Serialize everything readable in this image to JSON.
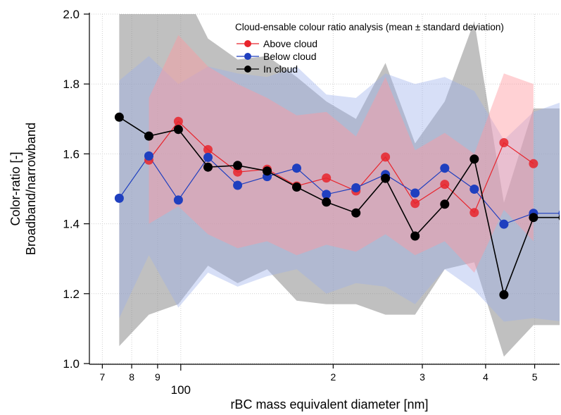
{
  "chart_data": {
    "type": "scatter",
    "title": "",
    "xlabel": "rBC mass equivalent diameter [nm]",
    "ylabel_line1": "Color-ratio [-]",
    "ylabel_line2": "Broadband/narrowband",
    "x_scale": "log",
    "xlim": [
      66,
      560
    ],
    "ylim": [
      1.0,
      2.0
    ],
    "grid": true,
    "legend_position": "top-right",
    "legend_title": "Cloud-ensable colour ratio analysis (mean ± standard deviation)",
    "x_ticks": [
      {
        "value": 70,
        "label": "7"
      },
      {
        "value": 80,
        "label": "8"
      },
      {
        "value": 90,
        "label": "9"
      },
      {
        "value": 100,
        "label": "100"
      },
      {
        "value": 200,
        "label": "2"
      },
      {
        "value": 300,
        "label": "3"
      },
      {
        "value": 400,
        "label": "4"
      },
      {
        "value": 500,
        "label": "5"
      }
    ],
    "x_minor_ticks": [
      600
    ],
    "y_ticks": [
      {
        "value": 1.0,
        "label": "1.0"
      },
      {
        "value": 1.2,
        "label": "1.2"
      },
      {
        "value": 1.4,
        "label": "1.4"
      },
      {
        "value": 1.6,
        "label": "1.6"
      },
      {
        "value": 1.8,
        "label": "1.8"
      },
      {
        "value": 2.0,
        "label": "2.0"
      }
    ],
    "series": [
      {
        "name": "Above cloud",
        "color": "#e8242c",
        "band_color": "#ff9aa0",
        "band_opacity": 0.45,
        "x": [
          86.5,
          98.9,
          113.2,
          129.5,
          148.1,
          169.4,
          193.9,
          221.8,
          253.7,
          290.3,
          332.1,
          379.9,
          434.7,
          497.3
        ],
        "y": [
          1.582,
          1.693,
          1.612,
          1.548,
          1.556,
          1.508,
          1.531,
          1.494,
          1.591,
          1.458,
          1.513,
          1.432,
          1.632,
          1.572
        ],
        "upper": [
          1.76,
          1.94,
          1.85,
          1.8,
          1.76,
          1.71,
          1.72,
          1.65,
          1.82,
          1.61,
          1.66,
          1.6,
          1.83,
          1.8
        ],
        "lower": [
          1.4,
          1.45,
          1.37,
          1.33,
          1.35,
          1.31,
          1.34,
          1.32,
          1.37,
          1.31,
          1.35,
          1.26,
          1.44,
          1.35
        ]
      },
      {
        "name": "Below cloud",
        "color": "#1f3fbf",
        "band_color": "#9ab0ec",
        "band_opacity": 0.4,
        "x": [
          75.6,
          86.5,
          98.9,
          113.2,
          129.5,
          148.1,
          169.4,
          193.9,
          221.8,
          253.7,
          290.3,
          332.1,
          379.9,
          434.7,
          497.3,
          569.1
        ],
        "y": [
          1.473,
          1.594,
          1.468,
          1.59,
          1.51,
          1.535,
          1.559,
          1.484,
          1.503,
          1.541,
          1.488,
          1.559,
          1.499,
          1.399,
          1.43,
          1.43
        ],
        "upper": [
          1.81,
          1.88,
          1.8,
          1.85,
          1.83,
          1.82,
          1.85,
          1.77,
          1.76,
          1.83,
          1.8,
          1.82,
          1.78,
          1.64,
          1.72,
          1.75
        ],
        "lower": [
          1.13,
          1.31,
          1.16,
          1.26,
          1.22,
          1.25,
          1.27,
          1.2,
          1.23,
          1.22,
          1.17,
          1.27,
          1.21,
          1.12,
          1.13,
          1.12
        ]
      },
      {
        "name": "In cloud",
        "color": "#000000",
        "band_color": "#8c8c8c",
        "band_opacity": 0.55,
        "x": [
          75.6,
          86.5,
          98.9,
          113.2,
          129.5,
          148.1,
          169.4,
          193.9,
          221.8,
          253.7,
          290.3,
          332.1,
          379.9,
          434.7,
          497.3,
          569.1
        ],
        "y": [
          1.705,
          1.651,
          1.67,
          1.562,
          1.567,
          1.551,
          1.505,
          1.462,
          1.431,
          1.53,
          1.365,
          1.456,
          1.585,
          1.197,
          1.418,
          1.418
        ],
        "upper": [
          2.1,
          2.1,
          2.1,
          1.93,
          1.87,
          1.88,
          1.82,
          1.75,
          1.7,
          1.86,
          1.63,
          1.75,
          1.98,
          1.46,
          1.73,
          1.73
        ],
        "lower": [
          1.05,
          1.14,
          1.17,
          1.28,
          1.23,
          1.27,
          1.18,
          1.17,
          1.17,
          1.14,
          1.14,
          1.27,
          1.29,
          1.02,
          1.11,
          1.11
        ]
      }
    ]
  }
}
